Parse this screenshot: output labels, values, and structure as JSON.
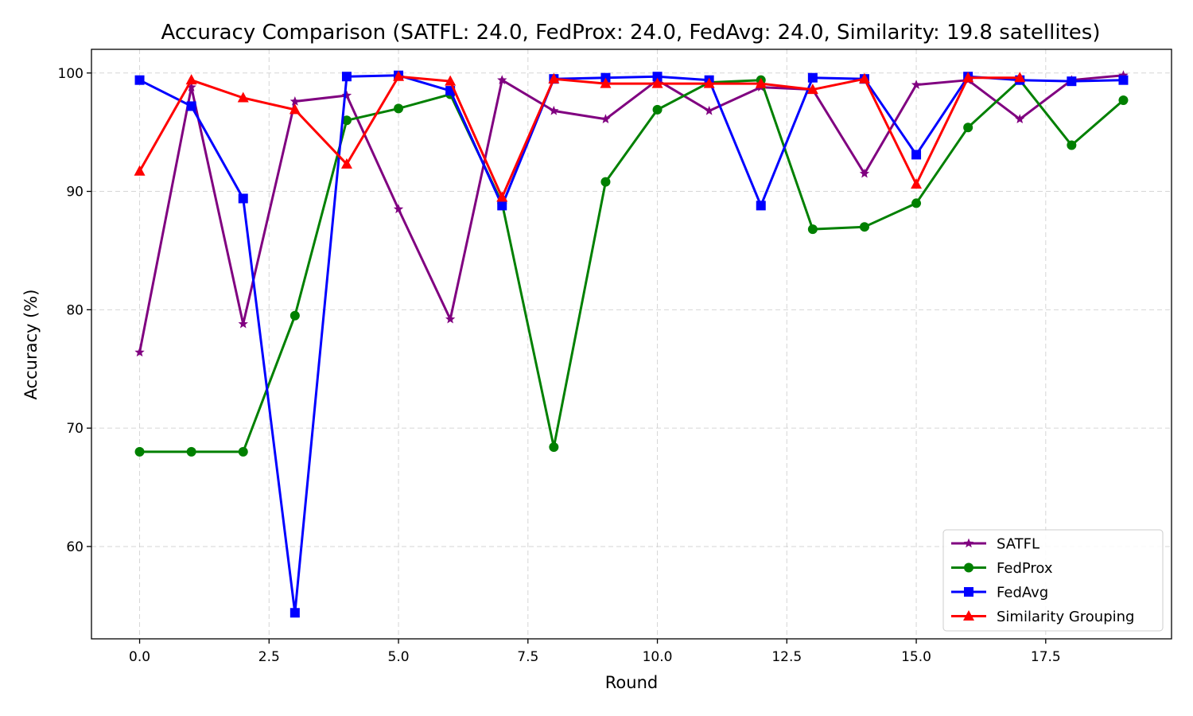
{
  "chart_data": {
    "type": "line",
    "title": "Accuracy Comparison (SATFL: 24.0, FedProx: 24.0, FedAvg: 24.0, Similarity: 19.8 satellites)",
    "xlabel": "Round",
    "ylabel": "Accuracy (%)",
    "xlim": [
      -0.93,
      19.93
    ],
    "ylim": [
      52.2,
      102.0
    ],
    "x_ticks": [
      0.0,
      2.5,
      5.0,
      7.5,
      10.0,
      12.5,
      15.0,
      17.5
    ],
    "x_tick_labels": [
      "0.0",
      "2.5",
      "5.0",
      "7.5",
      "10.0",
      "12.5",
      "15.0",
      "17.5"
    ],
    "y_ticks": [
      60,
      70,
      80,
      90,
      100
    ],
    "y_tick_labels": [
      "60",
      "70",
      "80",
      "90",
      "100"
    ],
    "grid": true,
    "legend_position": "lower-right",
    "x": [
      0,
      1,
      2,
      3,
      4,
      5,
      6,
      7,
      8,
      9,
      10,
      11,
      12,
      13,
      14,
      15,
      16,
      17,
      18,
      19
    ],
    "series": [
      {
        "name": "SATFL",
        "color": "#800080",
        "marker": "star",
        "values": [
          76.4,
          98.8,
          78.8,
          97.6,
          98.1,
          88.5,
          79.2,
          99.4,
          96.8,
          96.1,
          99.4,
          96.8,
          98.8,
          98.6,
          91.5,
          99.0,
          99.4,
          96.1,
          99.4,
          99.8
        ]
      },
      {
        "name": "FedProx",
        "color": "#008000",
        "marker": "circle",
        "values": [
          68.0,
          68.0,
          68.0,
          79.5,
          96.0,
          97.0,
          98.2,
          89.0,
          68.4,
          90.8,
          96.9,
          99.2,
          99.4,
          86.8,
          87.0,
          89.0,
          95.4,
          99.4,
          93.9,
          97.7
        ]
      },
      {
        "name": "FedAvg",
        "color": "#0000ff",
        "marker": "square",
        "values": [
          99.4,
          97.2,
          89.4,
          54.4,
          99.7,
          99.8,
          98.5,
          88.8,
          99.5,
          99.6,
          99.7,
          99.4,
          88.8,
          99.6,
          99.5,
          93.1,
          99.7,
          99.4,
          99.3,
          99.4
        ]
      },
      {
        "name": "Similarity Grouping",
        "color": "#ff0000",
        "marker": "triangle",
        "values": [
          91.7,
          99.4,
          97.9,
          96.9,
          92.3,
          99.7,
          99.3,
          89.5,
          99.5,
          99.1,
          99.1,
          99.1,
          99.1,
          98.6,
          99.5,
          90.6,
          99.6,
          99.6,
          null,
          null
        ]
      }
    ]
  }
}
